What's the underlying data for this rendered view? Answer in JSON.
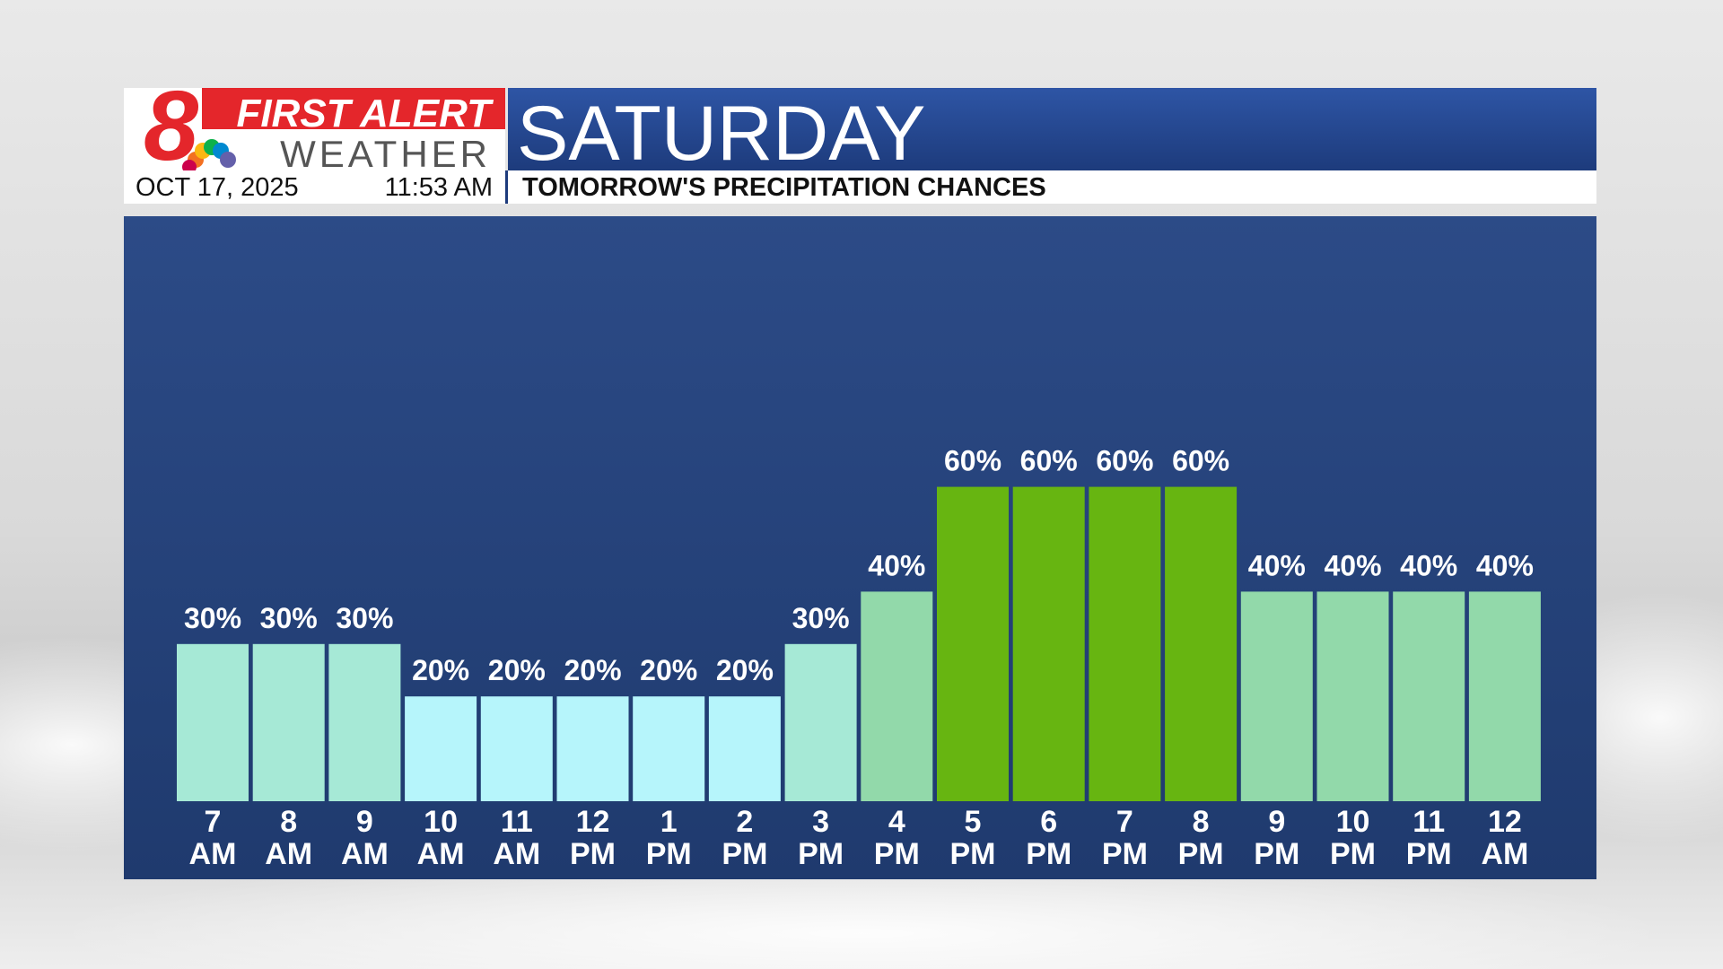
{
  "header": {
    "logo_top": "FIRST ALERT",
    "logo_bottom": "WEATHER",
    "date": "OCT 17, 2025",
    "time": "11:53 AM"
  },
  "chart_data": {
    "type": "bar",
    "title": "SATURDAY",
    "subtitle": "TOMORROW'S PRECIPITATION CHANCES",
    "categories": [
      "7 AM",
      "8 AM",
      "9 AM",
      "10 AM",
      "11 AM",
      "12 PM",
      "1 PM",
      "2 PM",
      "3 PM",
      "4 PM",
      "5 PM",
      "6 PM",
      "7 PM",
      "8 PM",
      "9 PM",
      "10 PM",
      "11 PM",
      "12 AM"
    ],
    "values": [
      30,
      30,
      30,
      20,
      20,
      20,
      20,
      20,
      30,
      40,
      60,
      60,
      60,
      60,
      40,
      40,
      40,
      40
    ],
    "value_labels": [
      "30%",
      "30%",
      "30%",
      "20%",
      "20%",
      "20%",
      "20%",
      "20%",
      "30%",
      "40%",
      "60%",
      "60%",
      "60%",
      "60%",
      "40%",
      "40%",
      "40%",
      "40%"
    ],
    "colors": [
      "#a6e9d6",
      "#a6e9d6",
      "#a6e9d6",
      "#b6f5fb",
      "#b6f5fb",
      "#b6f5fb",
      "#b6f5fb",
      "#b6f5fb",
      "#a6e9d6",
      "#92d9aa",
      "#67b511",
      "#67b511",
      "#67b511",
      "#67b511",
      "#92d9aa",
      "#92d9aa",
      "#92d9aa",
      "#92d9aa"
    ]
  }
}
